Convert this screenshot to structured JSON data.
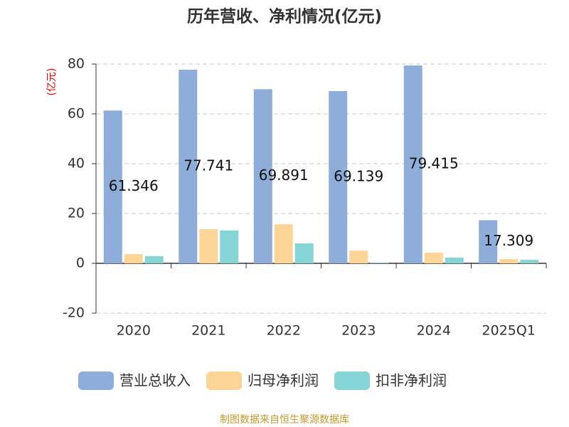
{
  "chart_data": {
    "type": "bar",
    "title": "历年营收、净利情况(亿元)",
    "unit_label": "(亿元)",
    "categories": [
      "2020",
      "2021",
      "2022",
      "2023",
      "2024",
      "2025Q1"
    ],
    "series": [
      {
        "name": "营业总收入",
        "color": "#8eadd9",
        "values": [
          61.346,
          77.741,
          69.891,
          69.139,
          79.415,
          17.309
        ],
        "show_labels": true
      },
      {
        "name": "归母净利润",
        "color": "#fdd697",
        "values": [
          3.7,
          13.7,
          15.7,
          5.1,
          4.3,
          1.7
        ]
      },
      {
        "name": "扣非净利润",
        "color": "#85d4d6",
        "values": [
          2.9,
          13.2,
          8.0,
          0.2,
          2.3,
          1.4
        ]
      }
    ],
    "ylim": [
      -20,
      80
    ],
    "yticks": [
      -20,
      0,
      20,
      40,
      60,
      80
    ],
    "grid": true,
    "source": "制图数据来自恒生聚源数据库"
  }
}
